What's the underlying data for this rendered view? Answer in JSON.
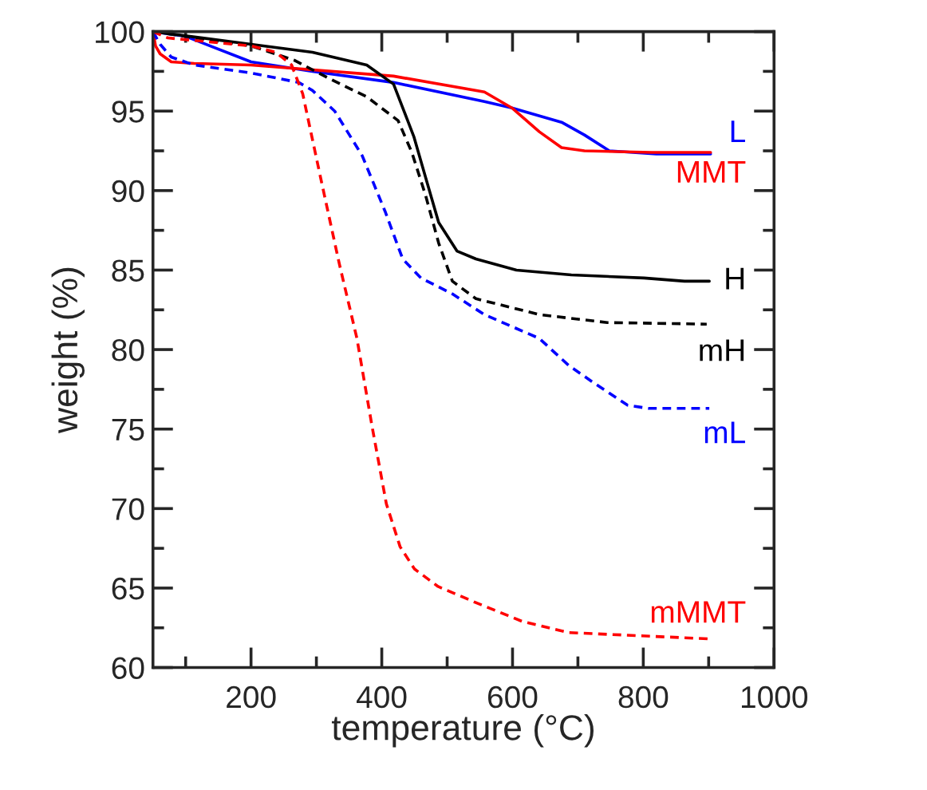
{
  "chart_data": {
    "type": "line",
    "xlabel": "temperature (°C)",
    "ylabel": "weight (%)",
    "xlim": [
      50,
      1000
    ],
    "xticks": [
      200,
      400,
      600,
      800,
      1000
    ],
    "ylim": [
      60,
      100
    ],
    "yticks": [
      60,
      65,
      70,
      75,
      80,
      85,
      90,
      95,
      100
    ],
    "grid": false,
    "legend": false,
    "marker": "none",
    "series": [
      {
        "name": "L",
        "color": "#0000ff",
        "line_style": "solid",
        "x": [
          51,
          100,
          200,
          294,
          418,
          557,
          599,
          675,
          710,
          748,
          820,
          903
        ],
        "values": [
          100,
          99.7,
          98.1,
          97.5,
          96.8,
          95.6,
          95.2,
          94.3,
          93.5,
          92.5,
          92.3,
          92.3
        ]
      },
      {
        "name": "MMT",
        "color": "#ff0000",
        "line_style": "solid",
        "x": [
          50,
          54,
          61,
          78,
          113,
          200,
          418,
          557,
          599,
          641,
          675,
          710,
          813,
          903
        ],
        "values": [
          100,
          99.1,
          98.6,
          98.1,
          98.0,
          97.9,
          97.2,
          96.2,
          95.2,
          93.7,
          92.7,
          92.5,
          92.4,
          92.4
        ]
      },
      {
        "name": "H",
        "color": "#000000",
        "line_style": "solid",
        "x": [
          50,
          200,
          294,
          377,
          418,
          449,
          470,
          487,
          515,
          544,
          606,
          690,
          801,
          863,
          901
        ],
        "values": [
          100,
          99.2,
          98.7,
          97.9,
          96.7,
          93.4,
          90.4,
          88.0,
          86.2,
          85.7,
          85.0,
          84.7,
          84.5,
          84.3,
          84.3
        ]
      },
      {
        "name": "mH",
        "color": "#000000",
        "line_style": "dashed",
        "x": [
          50,
          200,
          266,
          322,
          377,
          425,
          446,
          467,
          487,
          508,
          544,
          641,
          745,
          897
        ],
        "values": [
          100,
          99.1,
          98.2,
          97.0,
          95.9,
          94.4,
          92.4,
          89.7,
          86.7,
          84.3,
          83.2,
          82.2,
          81.7,
          81.6
        ]
      },
      {
        "name": "mL",
        "color": "#0000ff",
        "line_style": "dashed",
        "x": [
          50,
          61,
          78,
          113,
          200,
          273,
          294,
          328,
          370,
          405,
          432,
          460,
          508,
          557,
          641,
          686,
          721,
          776,
          808,
          901
        ],
        "values": [
          100,
          99.2,
          98.4,
          97.9,
          97.4,
          96.8,
          96.3,
          95.0,
          92.2,
          88.7,
          85.7,
          84.5,
          83.5,
          82.2,
          80.7,
          79.0,
          78.0,
          76.5,
          76.3,
          76.3
        ]
      },
      {
        "name": "mMMT",
        "color": "#ff0000",
        "line_style": "dashed",
        "x": [
          50,
          73,
          200,
          238,
          262,
          279,
          307,
          335,
          362,
          385,
          407,
          428,
          450,
          486,
          543,
          615,
          686,
          794,
          904
        ],
        "values": [
          100,
          99.6,
          99.1,
          98.7,
          97.9,
          96.1,
          90.7,
          85.4,
          80.7,
          75.2,
          70.3,
          67.6,
          66.2,
          65.1,
          64.1,
          62.9,
          62.2,
          62.0,
          61.8
        ]
      }
    ]
  }
}
